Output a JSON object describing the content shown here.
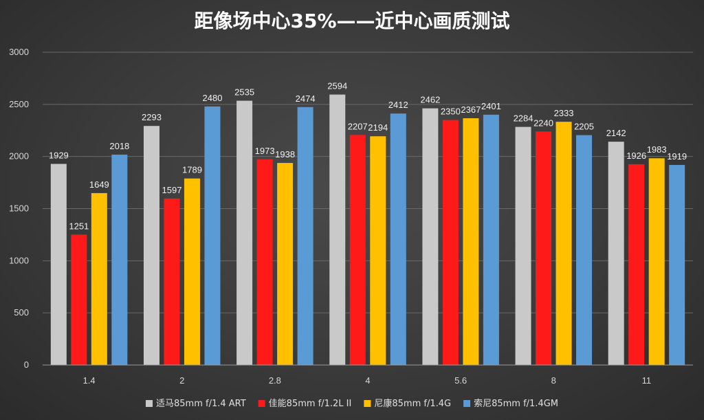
{
  "chart_data": {
    "type": "bar",
    "title": "距像场中心35%——近中心画质测试",
    "xlabel": "",
    "ylabel": "",
    "ylim": [
      0,
      3000
    ],
    "yticks": [
      0,
      500,
      1000,
      1500,
      2000,
      2500,
      3000
    ],
    "grid": true,
    "legend_position": "bottom",
    "categories": [
      "1.4",
      "2",
      "2.8",
      "4",
      "5.6",
      "8",
      "11"
    ],
    "series": [
      {
        "name": "适马85mm f/1.4 ART",
        "color": "#c9c9c9",
        "values": [
          1929,
          2293,
          2535,
          2594,
          2462,
          2284,
          2142
        ]
      },
      {
        "name": "佳能85mm f/1.2L II",
        "color": "#ff1a1a",
        "values": [
          1251,
          1597,
          1973,
          2207,
          2350,
          2240,
          1926
        ]
      },
      {
        "name": "尼康85mm f/1.4G",
        "color": "#ffc000",
        "values": [
          1649,
          1789,
          1938,
          2194,
          2367,
          2333,
          1983
        ]
      },
      {
        "name": "索尼85mm f/1.4GM",
        "color": "#5b9bd5",
        "values": [
          2018,
          2480,
          2474,
          2412,
          2401,
          2205,
          1919
        ]
      }
    ]
  }
}
